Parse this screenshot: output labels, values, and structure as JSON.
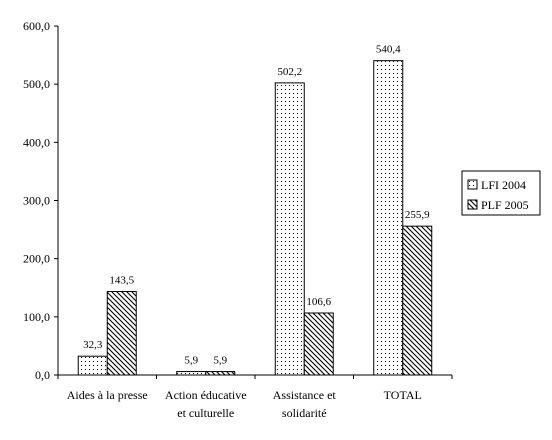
{
  "chart_data": {
    "type": "bar",
    "categories": [
      [
        "Aides à la presse"
      ],
      [
        "Action éducative",
        "et culturelle"
      ],
      [
        "Assistance et",
        "solidarité"
      ],
      [
        "TOTAL"
      ]
    ],
    "series": [
      {
        "name": "LFI  2004",
        "pattern": "dots",
        "values": [
          32.3,
          5.9,
          502.2,
          540.4
        ]
      },
      {
        "name": "PLF 2005",
        "pattern": "hatch",
        "values": [
          143.5,
          5.9,
          106.6,
          255.9
        ]
      }
    ],
    "value_labels": [
      [
        "32,3",
        "5,9",
        "502,2",
        "540,4"
      ],
      [
        "143,5",
        "5,9",
        "106,6",
        "255,9"
      ]
    ],
    "ylim": [
      0,
      600
    ],
    "yticks": [
      {
        "value": 0,
        "label": "0,0"
      },
      {
        "value": 100,
        "label": "100,0"
      },
      {
        "value": 200,
        "label": "200,0"
      },
      {
        "value": 300,
        "label": "300,0"
      },
      {
        "value": 400,
        "label": "400,0"
      },
      {
        "value": 500,
        "label": "500,0"
      },
      {
        "value": 600,
        "label": "600,0"
      }
    ],
    "legend_position": "right",
    "grid": false
  }
}
